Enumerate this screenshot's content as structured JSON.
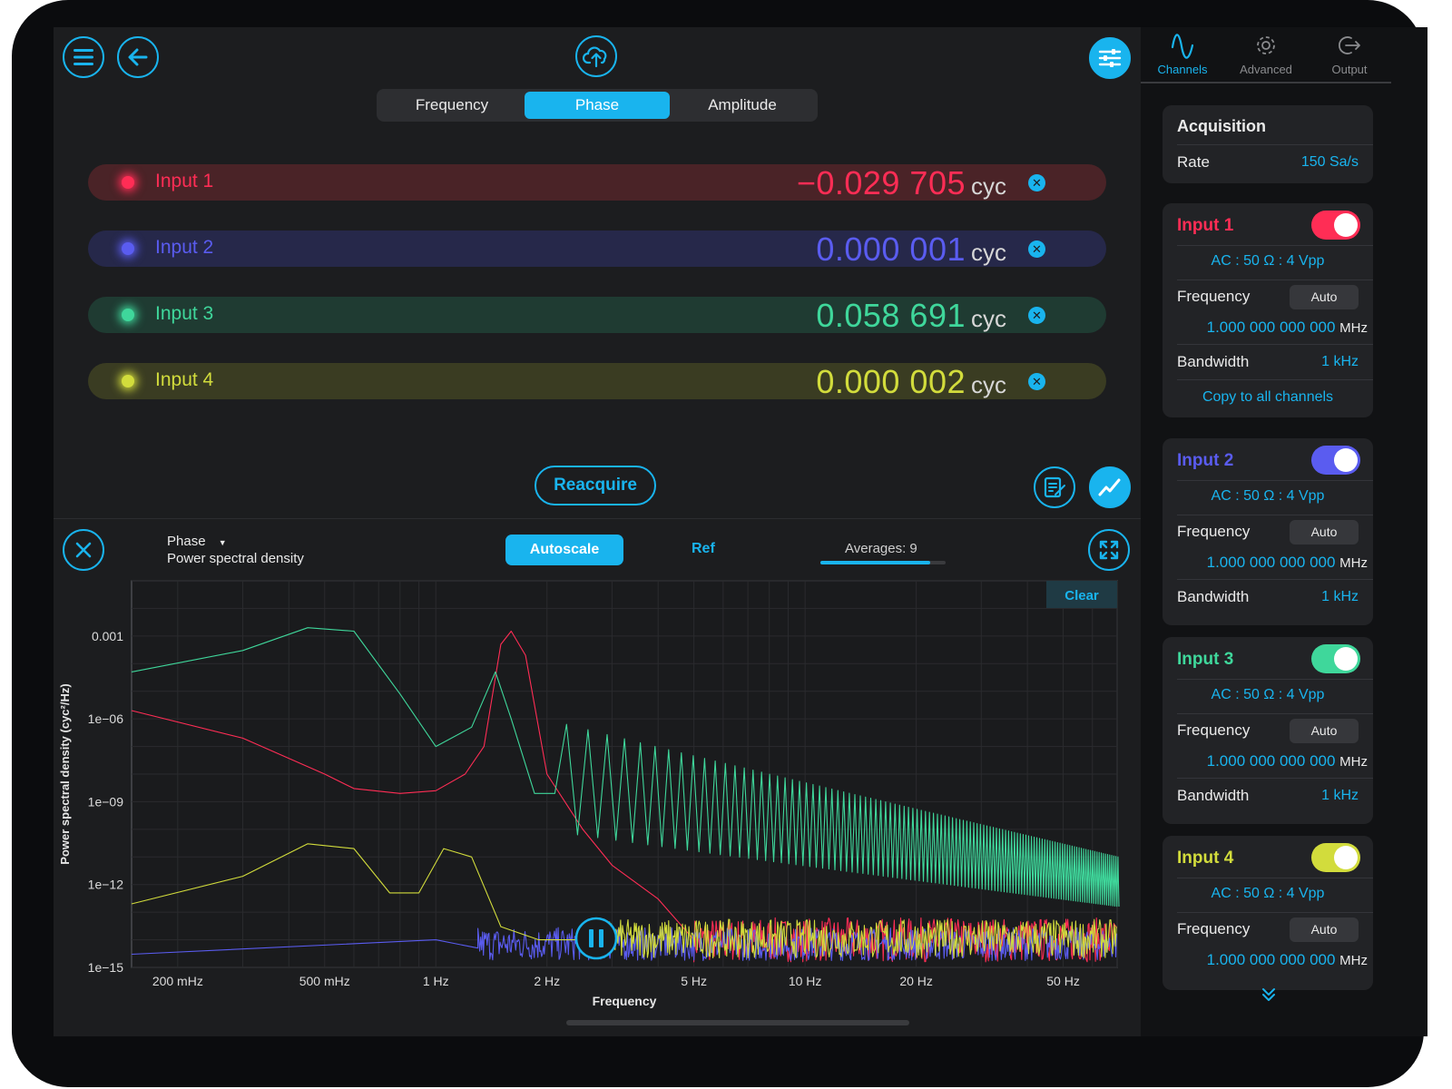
{
  "top": {
    "tabs": [
      {
        "label": "Frequency",
        "active": false
      },
      {
        "label": "Phase",
        "active": true
      },
      {
        "label": "Amplitude",
        "active": false
      }
    ],
    "icons": {
      "menu": "menu-icon",
      "back": "back-arrow-icon",
      "upload": "cloud-upload-icon",
      "settings": "sliders-icon"
    }
  },
  "channels": [
    {
      "name": "Input 1",
      "value": "−0.029 705",
      "unit": "cyc",
      "color": "#ff2d55",
      "bg": "#4a2327"
    },
    {
      "name": "Input 2",
      "value": "0.000 001",
      "unit": "cyc",
      "color": "#5a5cf0",
      "bg": "#26284a"
    },
    {
      "name": "Input 3",
      "value": "0.058 691",
      "unit": "cyc",
      "color": "#3fd79b",
      "bg": "#1f3b32"
    },
    {
      "name": "Input 4",
      "value": "0.000 002",
      "unit": "cyc",
      "color": "#d2dc3c",
      "bg": "#3a3c22"
    }
  ],
  "actions": {
    "reacquire": "Reacquire"
  },
  "plot": {
    "title_line1": "Phase",
    "title_line2": "Power spectral density",
    "autoscale": "Autoscale",
    "ref": "Ref",
    "averages": "Averages: 9",
    "averages_fraction": 0.88,
    "clear": "Clear"
  },
  "chart_data": {
    "type": "line",
    "xlabel": "Frequency",
    "ylabel": "Power spectral density (cyc²/Hz)",
    "x_scale": "log",
    "y_scale": "log",
    "xlim": [
      0.15,
      70
    ],
    "ylim": [
      1e-15,
      0.1
    ],
    "x_ticks": [
      {
        "value": 0.2,
        "label": "200 mHz"
      },
      {
        "value": 0.5,
        "label": "500 mHz"
      },
      {
        "value": 1,
        "label": "1 Hz"
      },
      {
        "value": 2,
        "label": "2 Hz"
      },
      {
        "value": 5,
        "label": "5 Hz"
      },
      {
        "value": 10,
        "label": "10 Hz"
      },
      {
        "value": 20,
        "label": "20 Hz"
      },
      {
        "value": 50,
        "label": "50 Hz"
      }
    ],
    "y_ticks": [
      {
        "value": 0.001,
        "label": "0.001"
      },
      {
        "value": 1e-06,
        "label": "1e−06"
      },
      {
        "value": 1e-09,
        "label": "1e−09"
      },
      {
        "value": 1e-12,
        "label": "1e−12"
      },
      {
        "value": 1e-15,
        "label": "1e−15"
      }
    ],
    "grid": true,
    "series": [
      {
        "color": "#ff2d55",
        "x": [
          0.15,
          0.3,
          0.5,
          0.6,
          0.8,
          1.0,
          1.2,
          1.35,
          1.5,
          1.6,
          1.75,
          2.0,
          2.5,
          3.0,
          4.0,
          5.0,
          70
        ],
        "y": [
          2e-06,
          2e-07,
          1e-08,
          3e-09,
          2e-09,
          2.5e-09,
          1e-08,
          1e-07,
          0.0005,
          0.0015,
          0.0002,
          1e-08,
          1e-10,
          5e-12,
          3e-13,
          1e-14,
          1e-14
        ]
      },
      {
        "color": "#5a5cf0",
        "x": [
          0.15,
          1.0,
          1.3,
          70
        ],
        "y": [
          3e-15,
          1e-14,
          5e-15,
          8e-15
        ]
      },
      {
        "color": "#3fd79b",
        "x": [
          0.15,
          0.3,
          0.45,
          0.6,
          0.8,
          1.0,
          1.25,
          1.45,
          1.6,
          1.85,
          2.1
        ],
        "y": [
          5e-05,
          0.0003,
          0.002,
          0.0015,
          8e-06,
          1e-07,
          5e-07,
          5e-05,
          1e-06,
          2e-09,
          2e-09
        ],
        "oscillation_start": 2.1,
        "oscillation_end": 70
      },
      {
        "color": "#d2dc3c",
        "x": [
          0.15,
          0.3,
          0.45,
          0.6,
          0.75,
          0.9,
          1.05,
          1.25,
          1.5,
          1.9,
          2.5,
          70
        ],
        "y": [
          2e-13,
          2e-12,
          3e-11,
          2e-11,
          5e-13,
          5e-13,
          2e-11,
          1e-11,
          3e-14,
          1e-14,
          1e-14,
          1e-14
        ]
      }
    ]
  },
  "sidebar": {
    "tabs": [
      {
        "label": "Channels",
        "icon": "sine-wave-icon",
        "active": true
      },
      {
        "label": "Advanced",
        "icon": "gear-icon",
        "active": false
      },
      {
        "label": "Output",
        "icon": "output-arrow-icon",
        "active": false
      }
    ],
    "acquisition": {
      "title": "Acquisition",
      "rate_label": "Rate",
      "rate_value": "150 Sa/s"
    },
    "inputs": [
      {
        "name": "Input 1",
        "color": "#ff2d55",
        "config": "AC : 50 Ω : 4 Vpp",
        "freq_label": "Frequency",
        "auto": "Auto",
        "freq_value": "1.000 000 000 000",
        "freq_unit": "MHz",
        "bw_label": "Bandwidth",
        "bw_value": "1 kHz",
        "copy": "Copy to all channels"
      },
      {
        "name": "Input 2",
        "color": "#5a5cf0",
        "config": "AC : 50 Ω : 4 Vpp",
        "freq_label": "Frequency",
        "auto": "Auto",
        "freq_value": "1.000 000 000 000",
        "freq_unit": "MHz",
        "bw_label": "Bandwidth",
        "bw_value": "1 kHz"
      },
      {
        "name": "Input 3",
        "color": "#3fd79b",
        "config": "AC : 50 Ω : 4 Vpp",
        "freq_label": "Frequency",
        "auto": "Auto",
        "freq_value": "1.000 000 000 000",
        "freq_unit": "MHz",
        "bw_label": "Bandwidth",
        "bw_value": "1 kHz"
      },
      {
        "name": "Input 4",
        "color": "#d2dc3c",
        "config": "AC : 50 Ω : 4 Vpp",
        "freq_label": "Frequency",
        "auto": "Auto",
        "freq_value": "1.000 000 000 000",
        "freq_unit": "MHz"
      }
    ]
  }
}
